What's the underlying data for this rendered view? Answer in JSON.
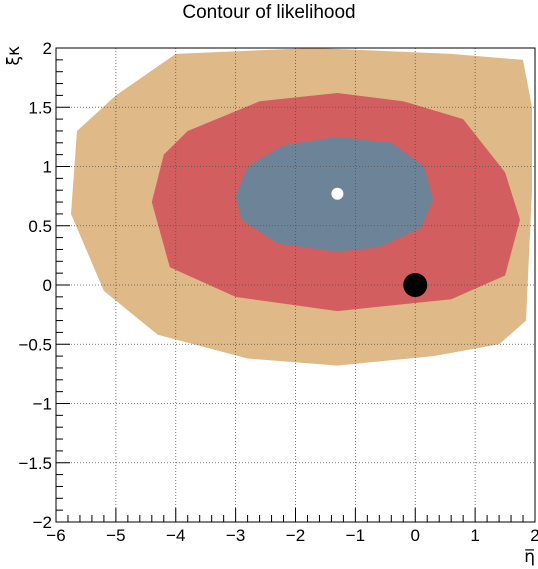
{
  "chart_data": {
    "type": "contour",
    "title": "Contour of likelihood",
    "xlabel": "η̅",
    "ylabel": "ξκ",
    "xlim": [
      -6,
      2
    ],
    "ylim": [
      -2,
      2
    ],
    "x_ticks": [
      "−6",
      "−5",
      "−4",
      "−3",
      "−2",
      "−1",
      "0",
      "1",
      "2"
    ],
    "x_tick_values": [
      -6,
      -5,
      -4,
      -3,
      -2,
      -1,
      0,
      1,
      2
    ],
    "y_ticks": [
      "−2",
      "−1.5",
      "−1",
      "−0.5",
      "0",
      "0.5",
      "1",
      "1.5",
      "2"
    ],
    "y_tick_values": [
      -2,
      -1.5,
      -1,
      -0.5,
      0,
      0.5,
      1,
      1.5,
      2
    ],
    "grid": true,
    "colors": {
      "outer": "#dfb987",
      "middle": "#d25e60",
      "inner": "#6d8498",
      "marker_best": "#ffffff",
      "marker_point": "#000000"
    },
    "contours": [
      {
        "level": "outer",
        "color": "#dfb987",
        "points": [
          [
            -4.0,
            1.95
          ],
          [
            -1.7,
            2.0
          ],
          [
            0.6,
            1.95
          ],
          [
            1.8,
            1.9
          ],
          [
            1.95,
            1.5
          ],
          [
            1.95,
            0.8
          ],
          [
            1.85,
            -0.3
          ],
          [
            1.4,
            -0.5
          ],
          [
            0.3,
            -0.6
          ],
          [
            -1.3,
            -0.68
          ],
          [
            -2.8,
            -0.62
          ],
          [
            -4.3,
            -0.42
          ],
          [
            -5.2,
            -0.05
          ],
          [
            -5.75,
            0.6
          ],
          [
            -5.65,
            1.3
          ],
          [
            -5.0,
            1.6
          ]
        ]
      },
      {
        "level": "middle",
        "color": "#d25e60",
        "points": [
          [
            -3.8,
            1.3
          ],
          [
            -2.6,
            1.55
          ],
          [
            -1.3,
            1.62
          ],
          [
            -0.2,
            1.55
          ],
          [
            0.8,
            1.4
          ],
          [
            1.5,
            0.95
          ],
          [
            1.75,
            0.55
          ],
          [
            1.5,
            0.08
          ],
          [
            0.6,
            -0.12
          ],
          [
            -1.3,
            -0.22
          ],
          [
            -3.0,
            -0.1
          ],
          [
            -4.1,
            0.15
          ],
          [
            -4.4,
            0.7
          ],
          [
            -4.2,
            1.1
          ]
        ]
      },
      {
        "level": "inner",
        "color": "#6d8498",
        "points": [
          [
            -2.8,
            1.0
          ],
          [
            -2.2,
            1.18
          ],
          [
            -1.3,
            1.25
          ],
          [
            -0.4,
            1.2
          ],
          [
            0.15,
            1.0
          ],
          [
            0.3,
            0.72
          ],
          [
            0.1,
            0.48
          ],
          [
            -0.6,
            0.32
          ],
          [
            -1.3,
            0.28
          ],
          [
            -2.3,
            0.35
          ],
          [
            -2.9,
            0.55
          ],
          [
            -3.0,
            0.75
          ]
        ]
      }
    ],
    "markers": [
      {
        "name": "best-fit-point",
        "x": -1.3,
        "y": 0.77,
        "color": "#ffffff",
        "radius": 6
      },
      {
        "name": "reference-point",
        "x": 0.0,
        "y": 0.0,
        "color": "#000000",
        "radius": 12
      }
    ]
  }
}
